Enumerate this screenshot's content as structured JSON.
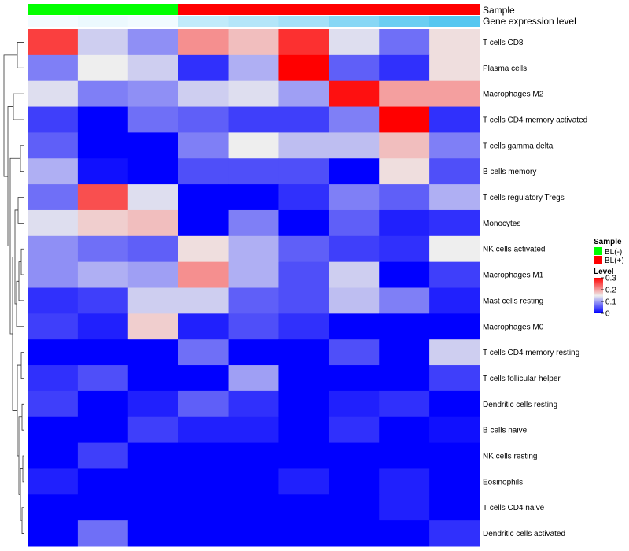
{
  "chart_data": {
    "type": "heatmap",
    "title": "",
    "rows": [
      "T cells CD8",
      "Plasma cells",
      "Macrophages M2",
      "T cells CD4 memory activated",
      "T cells gamma delta",
      "B cells memory",
      "T cells regulatory  Tregs",
      "Monocytes",
      "NK cells activated",
      "Macrophages M1",
      "Mast cells resting",
      "Macrophages M0",
      "T cells CD4 memory resting",
      "T cells follicular helper",
      "Dendritic cells resting",
      "B cells naive",
      "NK cells resting",
      "Eosinophils",
      "T cells CD4 naive",
      "Dendritic cells activated"
    ],
    "columns": 9,
    "values": [
      [
        0.26,
        0.13,
        0.09,
        0.21,
        0.18,
        0.27,
        0.14,
        0.07,
        0.16
      ],
      [
        0.08,
        0.15,
        0.13,
        0.03,
        0.11,
        0.31,
        0.06,
        0.03,
        0.16
      ],
      [
        0.14,
        0.08,
        0.09,
        0.13,
        0.14,
        0.1,
        0.29,
        0.2,
        0.2
      ],
      [
        0.04,
        0.0,
        0.07,
        0.06,
        0.04,
        0.04,
        0.08,
        0.31,
        0.03
      ],
      [
        0.06,
        0.0,
        0.0,
        0.08,
        0.15,
        0.12,
        0.12,
        0.18,
        0.08
      ],
      [
        0.11,
        0.01,
        0.0,
        0.05,
        0.05,
        0.05,
        0.0,
        0.16,
        0.05
      ],
      [
        0.07,
        0.25,
        0.14,
        0.0,
        0.0,
        0.03,
        0.08,
        0.06,
        0.11
      ],
      [
        0.14,
        0.17,
        0.18,
        0.0,
        0.08,
        0.0,
        0.06,
        0.02,
        0.03
      ],
      [
        0.09,
        0.07,
        0.06,
        0.16,
        0.11,
        0.06,
        0.04,
        0.03,
        0.15
      ],
      [
        0.09,
        0.11,
        0.1,
        0.21,
        0.11,
        0.05,
        0.13,
        0.0,
        0.04
      ],
      [
        0.03,
        0.04,
        0.13,
        0.13,
        0.06,
        0.05,
        0.12,
        0.08,
        0.02
      ],
      [
        0.04,
        0.02,
        0.17,
        0.02,
        0.05,
        0.03,
        0.0,
        0.0,
        0.0
      ],
      [
        0.0,
        0.0,
        0.0,
        0.07,
        0.0,
        0.0,
        0.05,
        0.0,
        0.13
      ],
      [
        0.03,
        0.05,
        0.0,
        0.0,
        0.1,
        0.0,
        0.0,
        0.0,
        0.04
      ],
      [
        0.04,
        0.0,
        0.02,
        0.06,
        0.03,
        0.0,
        0.02,
        0.03,
        0.0
      ],
      [
        0.0,
        0.0,
        0.04,
        0.02,
        0.02,
        0.0,
        0.03,
        0.0,
        0.01
      ],
      [
        0.0,
        0.04,
        0.0,
        0.0,
        0.0,
        0.0,
        0.0,
        0.0,
        0.0
      ],
      [
        0.02,
        0.0,
        0.0,
        0.0,
        0.0,
        0.02,
        0.0,
        0.02,
        0.0
      ],
      [
        0.0,
        0.0,
        0.0,
        0.0,
        0.0,
        0.0,
        0.0,
        0.02,
        0.0
      ],
      [
        0.0,
        0.07,
        0.0,
        0.0,
        0.0,
        0.0,
        0.0,
        0.0,
        0.03
      ]
    ],
    "color_scale": {
      "stops": [
        {
          "value": 0.0,
          "color": "#0000ff"
        },
        {
          "value": 0.15,
          "color": "#eeeeee"
        },
        {
          "value": 0.3,
          "color": "#ff0000"
        }
      ],
      "range": [
        0,
        0.3
      ]
    },
    "column_annotations": {
      "sample": {
        "label": "Sample",
        "values": [
          "BL(-)",
          "BL(-)",
          "BL(-)",
          "BL(+)",
          "BL(+)",
          "BL(+)",
          "BL(+)",
          "BL(+)",
          "BL(+)"
        ]
      },
      "gene_expression_level": {
        "label": "Gene expression level",
        "values": [
          0.5,
          0.8,
          0.55,
          3.0,
          3.7,
          4.5,
          6.0,
          7.5,
          8.5
        ],
        "low_color": "#f2fbff",
        "high_color": "#56c7f0"
      }
    },
    "legend": {
      "position": "right",
      "sample_title": "Sample",
      "sample_entries": [
        {
          "label": "BL(-)",
          "color": "#00ff00"
        },
        {
          "label": "BL(+)",
          "color": "#ff0000"
        }
      ],
      "level_title": "Level",
      "level_ticks": [
        "0",
        "0.1",
        "0.2",
        "0.3"
      ],
      "level_tick_values": [
        0,
        0.1,
        0.2,
        0.3
      ]
    },
    "row_dendrogram": true
  }
}
